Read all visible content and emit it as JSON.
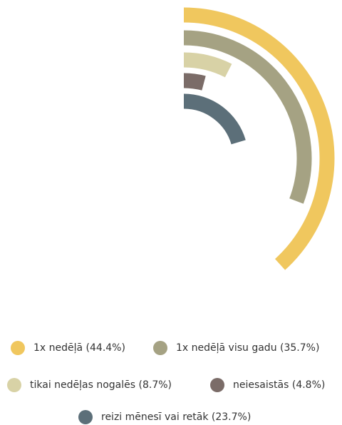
{
  "chart_data": {
    "type": "radial-bar",
    "categories": [
      "1x nedēļā (44.4%)",
      "1x nedēļā visu gadu (35.7%)",
      "tikai nedēļas nogalēs (8.7%)",
      "neiesaistās (4.8%)",
      "reizi mēnesī vai retāk (23.7%)"
    ],
    "values": [
      44.4,
      35.7,
      8.7,
      4.8,
      23.7
    ],
    "colors": [
      "#f0c75e",
      "#a5a283",
      "#d8d2a6",
      "#7b6c68",
      "#5c6f79"
    ],
    "anglelim": [
      0,
      116
    ]
  }
}
